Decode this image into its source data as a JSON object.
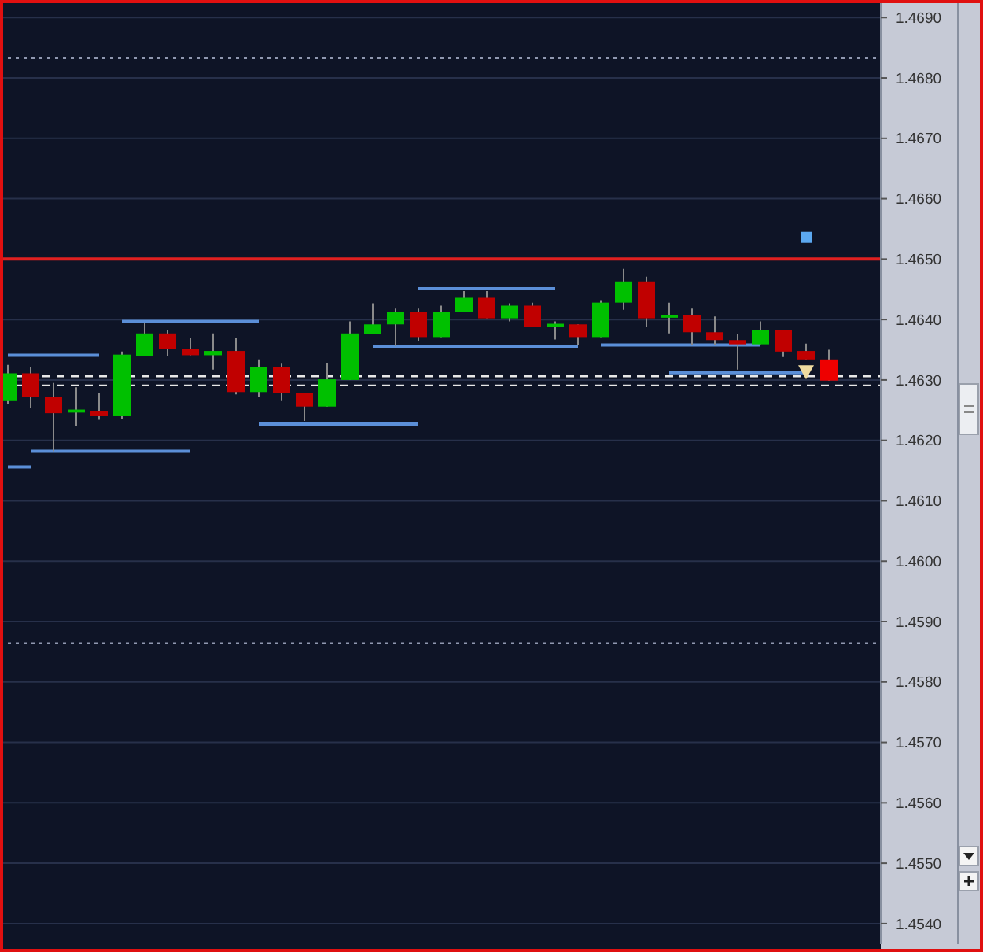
{
  "chart_data": {
    "type": "candlestick",
    "categories": [
      null,
      null,
      null,
      null,
      null,
      null,
      null,
      null,
      null,
      null,
      null,
      null,
      null,
      null,
      null,
      null,
      null,
      null,
      null,
      null,
      null,
      null,
      null,
      null,
      null,
      null,
      null,
      null,
      null,
      null,
      null,
      null,
      null,
      null,
      null,
      null,
      null
    ],
    "ohlc": [
      [
        1.46265,
        1.46325,
        1.4626,
        1.46311
      ],
      [
        1.46311,
        1.46321,
        1.46254,
        1.46272
      ],
      [
        1.46272,
        1.46295,
        1.46182,
        1.46245
      ],
      [
        1.46246,
        1.46288,
        1.46223,
        1.46251
      ],
      [
        1.46249,
        1.46279,
        1.46234,
        1.4624
      ],
      [
        1.4624,
        1.46347,
        1.46236,
        1.46342
      ],
      [
        1.4634,
        1.46394,
        1.4634,
        1.46377
      ],
      [
        1.46377,
        1.46382,
        1.4634,
        1.46352
      ],
      [
        1.46352,
        1.46369,
        1.46341,
        1.46341
      ],
      [
        1.46341,
        1.46377,
        1.46317,
        1.46348
      ],
      [
        1.46348,
        1.46369,
        1.46276,
        1.4628
      ],
      [
        1.4628,
        1.46334,
        1.46272,
        1.46322
      ],
      [
        1.46321,
        1.46327,
        1.46265,
        1.46279
      ],
      [
        1.46279,
        1.46279,
        1.46232,
        1.46256
      ],
      [
        1.46256,
        1.46328,
        1.46256,
        1.46301
      ],
      [
        1.463,
        1.46397,
        1.463,
        1.46377
      ],
      [
        1.46376,
        1.46427,
        1.46376,
        1.46392
      ],
      [
        1.46392,
        1.46418,
        1.46356,
        1.46412
      ],
      [
        1.46412,
        1.46418,
        1.46364,
        1.46371
      ],
      [
        1.46371,
        1.46423,
        1.46371,
        1.46412
      ],
      [
        1.46412,
        1.46447,
        1.46412,
        1.46436
      ],
      [
        1.46436,
        1.46447,
        1.46402,
        1.46402
      ],
      [
        1.46402,
        1.46427,
        1.46397,
        1.46423
      ],
      [
        1.46423,
        1.46428,
        1.46388,
        1.46388
      ],
      [
        1.46388,
        1.46397,
        1.46367,
        1.46393
      ],
      [
        1.46392,
        1.46392,
        1.46358,
        1.46371
      ],
      [
        1.46371,
        1.46432,
        1.46371,
        1.46428
      ],
      [
        1.46428,
        1.46484,
        1.46416,
        1.46463
      ],
      [
        1.46463,
        1.46471,
        1.46388,
        1.46402
      ],
      [
        1.46403,
        1.46428,
        1.46377,
        1.46408
      ],
      [
        1.46408,
        1.46418,
        1.46358,
        1.46379
      ],
      [
        1.46379,
        1.46405,
        1.46358,
        1.46366
      ],
      [
        1.46366,
        1.46376,
        1.46317,
        1.46359
      ],
      [
        1.46359,
        1.46397,
        1.46359,
        1.46382
      ],
      [
        1.46382,
        1.46382,
        1.46338,
        1.46347
      ],
      [
        1.46348,
        1.4636,
        1.46334,
        1.46334
      ],
      [
        1.46334,
        1.4635,
        1.46299,
        1.46299
      ]
    ],
    "colors": [
      "#00c000",
      "#c00000",
      "#c00000",
      "#00c000",
      "#c00000",
      "#00c000",
      "#00c000",
      "#c00000",
      "#c00000",
      "#00c000",
      "#c00000",
      "#00c000",
      "#c00000",
      "#c00000",
      "#00c000",
      "#00c000",
      "#00c000",
      "#00c000",
      "#c00000",
      "#00c000",
      "#00c000",
      "#c00000",
      "#00c000",
      "#c00000",
      "#00c000",
      "#c00000",
      "#00c000",
      "#00c000",
      "#c00000",
      "#00c000",
      "#c00000",
      "#c00000",
      "#c00000",
      "#00c000",
      "#c00000",
      "#c00000",
      "#ee0000"
    ],
    "series": [
      {
        "type": "line",
        "color": "#5b8fd8",
        "values": [
          1.46341,
          1.46341,
          1.46341,
          1.46341,
          1.46341,
          null,
          null,
          null,
          null,
          null,
          null,
          null,
          null,
          null,
          null,
          null,
          null,
          null,
          null,
          null,
          null,
          null,
          null,
          null,
          null,
          null,
          null,
          null,
          null,
          null,
          null,
          null,
          null,
          null,
          null,
          null,
          null
        ]
      },
      {
        "type": "line",
        "color": "#5b8fd8",
        "values": [
          null,
          null,
          null,
          null,
          null,
          1.46397,
          1.46397,
          1.46397,
          1.46397,
          1.46397,
          1.46397,
          1.46397,
          null,
          null,
          null,
          null,
          null,
          null,
          null,
          null,
          null,
          null,
          null,
          null,
          null,
          null,
          null,
          null,
          null,
          null,
          null,
          null,
          null,
          null,
          null,
          null,
          null
        ]
      },
      {
        "type": "line",
        "color": "#5b8fd8",
        "values": [
          null,
          1.46182,
          1.46182,
          1.46182,
          1.46182,
          1.46182,
          1.46182,
          1.46182,
          1.46182,
          null,
          null,
          null,
          null,
          null,
          null,
          null,
          null,
          null,
          null,
          null,
          null,
          null,
          null,
          null,
          null,
          null,
          null,
          null,
          null,
          null,
          null,
          null,
          null,
          null,
          null,
          null,
          null
        ]
      },
      {
        "type": "line",
        "color": "#5b8fd8",
        "values": [
          1.46156,
          1.46156,
          null,
          null,
          null,
          null,
          null,
          null,
          null,
          null,
          null,
          null,
          null,
          null,
          null,
          null,
          null,
          null,
          null,
          null,
          null,
          null,
          null,
          null,
          null,
          null,
          null,
          null,
          null,
          null,
          null,
          null,
          null,
          null,
          null,
          null,
          null
        ]
      },
      {
        "type": "line",
        "color": "#5b8fd8",
        "values": [
          null,
          null,
          null,
          null,
          null,
          null,
          null,
          null,
          null,
          null,
          null,
          1.46227,
          1.46227,
          1.46227,
          1.46227,
          1.46227,
          1.46227,
          1.46227,
          1.46227,
          null,
          null,
          null,
          null,
          null,
          null,
          null,
          null,
          null,
          null,
          null,
          null,
          null,
          null,
          null,
          null,
          null,
          null
        ]
      },
      {
        "type": "line",
        "color": "#5b8fd8",
        "values": [
          null,
          null,
          null,
          null,
          null,
          null,
          null,
          null,
          null,
          null,
          null,
          null,
          null,
          null,
          null,
          null,
          1.46356,
          1.46356,
          1.46356,
          1.46356,
          1.46356,
          1.46356,
          1.46356,
          1.46356,
          1.46356,
          1.46356,
          null,
          null,
          null,
          null,
          null,
          null,
          null,
          null,
          null,
          null,
          null
        ]
      },
      {
        "type": "line",
        "color": "#5b8fd8",
        "values": [
          null,
          null,
          null,
          null,
          null,
          null,
          null,
          null,
          null,
          null,
          null,
          null,
          null,
          null,
          null,
          null,
          null,
          null,
          1.46451,
          1.46451,
          1.46451,
          1.46451,
          1.46451,
          1.46451,
          1.46451,
          null,
          null,
          null,
          null,
          null,
          null,
          null,
          null,
          null,
          null,
          null,
          null
        ]
      },
      {
        "type": "line",
        "color": "#5b8fd8",
        "values": [
          null,
          null,
          null,
          null,
          null,
          null,
          null,
          null,
          null,
          null,
          null,
          null,
          null,
          null,
          null,
          null,
          null,
          null,
          null,
          null,
          null,
          null,
          null,
          null,
          null,
          null,
          1.46358,
          1.46358,
          1.46358,
          1.46358,
          1.46358,
          1.46358,
          1.46358,
          1.46358,
          null,
          null,
          null
        ]
      },
      {
        "type": "line",
        "color": "#5b8fd8",
        "values": [
          null,
          null,
          null,
          null,
          null,
          null,
          null,
          null,
          null,
          null,
          null,
          null,
          null,
          null,
          null,
          null,
          null,
          null,
          null,
          null,
          null,
          null,
          null,
          null,
          null,
          null,
          null,
          null,
          null,
          1.46312,
          1.46312,
          1.46312,
          1.46312,
          1.46312,
          1.46312,
          1.46312,
          null
        ]
      },
      {
        "type": "scatter",
        "color": "#5ba8f0",
        "marker": "square",
        "values": [
          null,
          null,
          null,
          null,
          null,
          null,
          null,
          null,
          null,
          null,
          null,
          null,
          null,
          null,
          null,
          null,
          null,
          null,
          null,
          null,
          null,
          null,
          null,
          null,
          null,
          null,
          null,
          null,
          null,
          null,
          null,
          null,
          null,
          null,
          null,
          1.46536,
          null
        ]
      },
      {
        "type": "scatter",
        "color": "#f0dca0",
        "marker": "triangle",
        "values": [
          null,
          null,
          null,
          null,
          null,
          null,
          null,
          null,
          null,
          null,
          null,
          null,
          null,
          null,
          null,
          null,
          null,
          null,
          null,
          null,
          null,
          null,
          null,
          null,
          null,
          null,
          null,
          null,
          null,
          null,
          null,
          null,
          null,
          null,
          null,
          1.46314,
          null
        ]
      }
    ],
    "ylim": [
      1.45366,
      1.46929
    ],
    "yticks": [
      {
        "value": 1.454,
        "label": "1.4540"
      },
      {
        "value": 1.455,
        "label": "1.4550"
      },
      {
        "value": 1.456,
        "label": "1.4560"
      },
      {
        "value": 1.457,
        "label": "1.4570"
      },
      {
        "value": 1.458,
        "label": "1.4580"
      },
      {
        "value": 1.459,
        "label": "1.4590"
      },
      {
        "value": 1.46,
        "label": "1.4600"
      },
      {
        "value": 1.461,
        "label": "1.4610"
      },
      {
        "value": 1.462,
        "label": "1.4620"
      },
      {
        "value": 1.463,
        "label": "1.4630"
      },
      {
        "value": 1.464,
        "label": "1.4640"
      },
      {
        "value": 1.465,
        "label": "1.4650"
      },
      {
        "value": 1.466,
        "label": "1.4660"
      },
      {
        "value": 1.467,
        "label": "1.4670"
      },
      {
        "value": 1.468,
        "label": "1.4680"
      },
      {
        "value": 1.469,
        "label": "1.4690"
      }
    ],
    "ref_lines": [
      {
        "axis": "y",
        "value": 1.465,
        "color": "#e02020",
        "line_style": "solid"
      },
      {
        "axis": "y",
        "value": 1.46306,
        "color": "#e8e8e8",
        "line_style": "dashed"
      },
      {
        "axis": "y",
        "value": 1.46291,
        "color": "#e8e8e8",
        "line_style": "dashed"
      },
      {
        "axis": "y",
        "value": 1.46833,
        "color": "#9098b0",
        "line_style": "dotted"
      },
      {
        "axis": "y",
        "value": 1.45864,
        "color": "#9098b0",
        "line_style": "dotted"
      }
    ],
    "grid": "y",
    "tick_labels": "y"
  }
}
